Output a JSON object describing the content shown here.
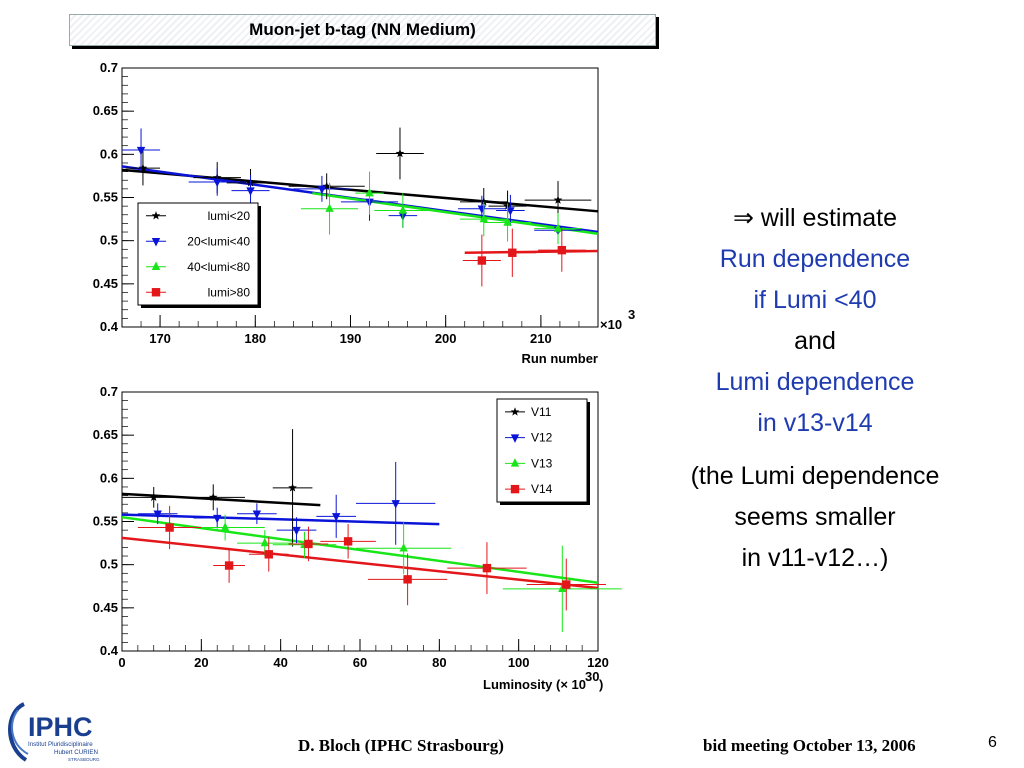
{
  "slide_title": "Muon-jet b-tag (NN Medium)",
  "notes": {
    "arrow": "⇒",
    "line1": "will estimate",
    "line2": "Run dependence",
    "line3": "if Lumi <40",
    "line4": "and",
    "line5": "Lumi dependence",
    "line6": "in v13-v14",
    "line7": "(the Lumi dependence",
    "line8": "seems smaller",
    "line9": "in v11-v12…)"
  },
  "footer": {
    "author": "D. Bloch  (IPHC Strasbourg)",
    "meeting": "bid meeting   October 13, 2006",
    "page": "6"
  },
  "logo": {
    "name": "IPHC",
    "line1": "Institut Pluridisciplinaire",
    "line2": "Hubert CURIEN",
    "line3": "STRASBOURG"
  },
  "colors": {
    "black": "#000000",
    "blue": "#0a14d8",
    "green": "#19e619",
    "red": "#e3161a",
    "text_blue": "#1f3bb0"
  },
  "chart_data": [
    {
      "type": "scatter",
      "xlabel": "Run number",
      "x_multiplier": "×10",
      "x_multiplier_exp": "3",
      "xlim": [
        166,
        216
      ],
      "ylim": [
        0.4,
        0.7
      ],
      "xticks": [
        170,
        180,
        190,
        200,
        210
      ],
      "yticks": [
        0.4,
        0.45,
        0.5,
        0.55,
        0.6,
        0.65,
        0.7
      ],
      "legend_position": "bottom-left",
      "series": [
        {
          "name": "lumi<20",
          "color": "#000000",
          "marker": "star",
          "points": [
            [
              168.2,
              0.584
            ],
            [
              176.0,
              0.573
            ],
            [
              179.5,
              0.567
            ],
            [
              187.5,
              0.563
            ],
            [
              195.2,
              0.601
            ],
            [
              204.0,
              0.545
            ],
            [
              206.5,
              0.54
            ],
            [
              211.8,
              0.547
            ]
          ],
          "xerr": [
            1.8,
            2.5,
            2.5,
            4.0,
            2.5,
            2.5,
            2.0,
            3.5
          ],
          "yerr": [
            0.02,
            0.018,
            0.016,
            0.015,
            0.03,
            0.016,
            0.018,
            0.022
          ],
          "fit": [
            [
              166,
              0.582
            ],
            [
              216,
              0.534
            ]
          ]
        },
        {
          "name": "20<lumi<40",
          "color": "#0a14d8",
          "marker": "triangle-down",
          "points": [
            [
              168.0,
              0.605
            ],
            [
              176.0,
              0.568
            ],
            [
              179.5,
              0.558
            ],
            [
              187.0,
              0.56
            ],
            [
              192.0,
              0.545
            ],
            [
              195.5,
              0.529
            ],
            [
              203.8,
              0.537
            ],
            [
              206.8,
              0.535
            ],
            [
              211.8,
              0.512
            ]
          ],
          "xerr": [
            2.0,
            3.0,
            2.0,
            3.0,
            3.0,
            1.5,
            2.5,
            1.5,
            2.5
          ],
          "yerr": [
            0.025,
            0.016,
            0.018,
            0.015,
            0.022,
            0.014,
            0.015,
            0.018,
            0.016
          ],
          "fit": [
            [
              166,
              0.586
            ],
            [
              216,
              0.51
            ]
          ]
        },
        {
          "name": "40<lumi<80",
          "color": "#19e619",
          "marker": "triangle-up",
          "points": [
            [
              187.8,
              0.537
            ],
            [
              192.0,
              0.555
            ],
            [
              195.5,
              0.535
            ],
            [
              204.0,
              0.525
            ],
            [
              206.5,
              0.521
            ],
            [
              211.8,
              0.514
            ]
          ],
          "xerr": [
            3.0,
            1.5,
            3.0,
            2.5,
            2.5,
            2.5
          ],
          "yerr": [
            0.03,
            0.025,
            0.02,
            0.02,
            0.022,
            0.018
          ],
          "fit": [
            [
              186,
              0.555
            ],
            [
              216,
              0.508
            ]
          ]
        },
        {
          "name": "lumi>80",
          "color": "#e3161a",
          "marker": "square",
          "points": [
            [
              203.8,
              0.477
            ],
            [
              207.0,
              0.486
            ],
            [
              212.2,
              0.489
            ]
          ],
          "xerr": [
            2.0,
            2.5,
            2.5
          ],
          "yerr": [
            0.03,
            0.028,
            0.025
          ],
          "fit": [
            [
              202,
              0.486
            ],
            [
              216,
              0.488
            ]
          ]
        }
      ]
    },
    {
      "type": "scatter",
      "xlabel": "Luminosity (× 10",
      "xlabel_exp": "30",
      "xlabel_end": ")",
      "xlim": [
        0,
        120
      ],
      "ylim": [
        0.4,
        0.7
      ],
      "xticks": [
        0,
        20,
        40,
        60,
        80,
        100,
        120
      ],
      "yticks": [
        0.4,
        0.45,
        0.5,
        0.55,
        0.6,
        0.65,
        0.7
      ],
      "legend_position": "top-right",
      "series": [
        {
          "name": "V11",
          "color": "#000000",
          "marker": "star",
          "points": [
            [
              8,
              0.578
            ],
            [
              23,
              0.578
            ],
            [
              43,
              0.589
            ]
          ],
          "xerr": [
            8,
            8,
            5
          ],
          "yerr": [
            0.012,
            0.015,
            0.068
          ],
          "fit": [
            [
              0,
              0.582
            ],
            [
              50,
              0.569
            ]
          ]
        },
        {
          "name": "V12",
          "color": "#0a14d8",
          "marker": "triangle-down",
          "points": [
            [
              9,
              0.559
            ],
            [
              24,
              0.554
            ],
            [
              34,
              0.559
            ],
            [
              44,
              0.54
            ],
            [
              54,
              0.556
            ],
            [
              69,
              0.571
            ]
          ],
          "xerr": [
            5,
            6,
            5,
            5,
            5,
            10
          ],
          "yerr": [
            0.012,
            0.012,
            0.012,
            0.015,
            0.025,
            0.048
          ],
          "fit": [
            [
              0,
              0.558
            ],
            [
              80,
              0.547
            ]
          ]
        },
        {
          "name": "V13",
          "color": "#19e619",
          "marker": "triangle-up",
          "points": [
            [
              26,
              0.543
            ],
            [
              36,
              0.525
            ],
            [
              46,
              0.523
            ],
            [
              71,
              0.519
            ],
            [
              111,
              0.472
            ]
          ],
          "xerr": [
            10,
            7,
            8,
            12,
            15
          ],
          "yerr": [
            0.015,
            0.015,
            0.015,
            0.03,
            0.05
          ],
          "fit": [
            [
              0,
              0.555
            ],
            [
              120,
              0.479
            ]
          ]
        },
        {
          "name": "V14",
          "color": "#e3161a",
          "marker": "square",
          "points": [
            [
              12,
              0.543
            ],
            [
              27,
              0.499
            ],
            [
              37,
              0.512
            ],
            [
              47,
              0.524
            ],
            [
              57,
              0.527
            ],
            [
              72,
              0.483
            ],
            [
              92,
              0.496
            ],
            [
              112,
              0.477
            ]
          ],
          "xerr": [
            8,
            4,
            5,
            5,
            7,
            10,
            10,
            10
          ],
          "yerr": [
            0.025,
            0.02,
            0.02,
            0.02,
            0.02,
            0.03,
            0.03,
            0.03
          ],
          "fit": [
            [
              0,
              0.531
            ],
            [
              120,
              0.473
            ]
          ]
        }
      ]
    }
  ]
}
